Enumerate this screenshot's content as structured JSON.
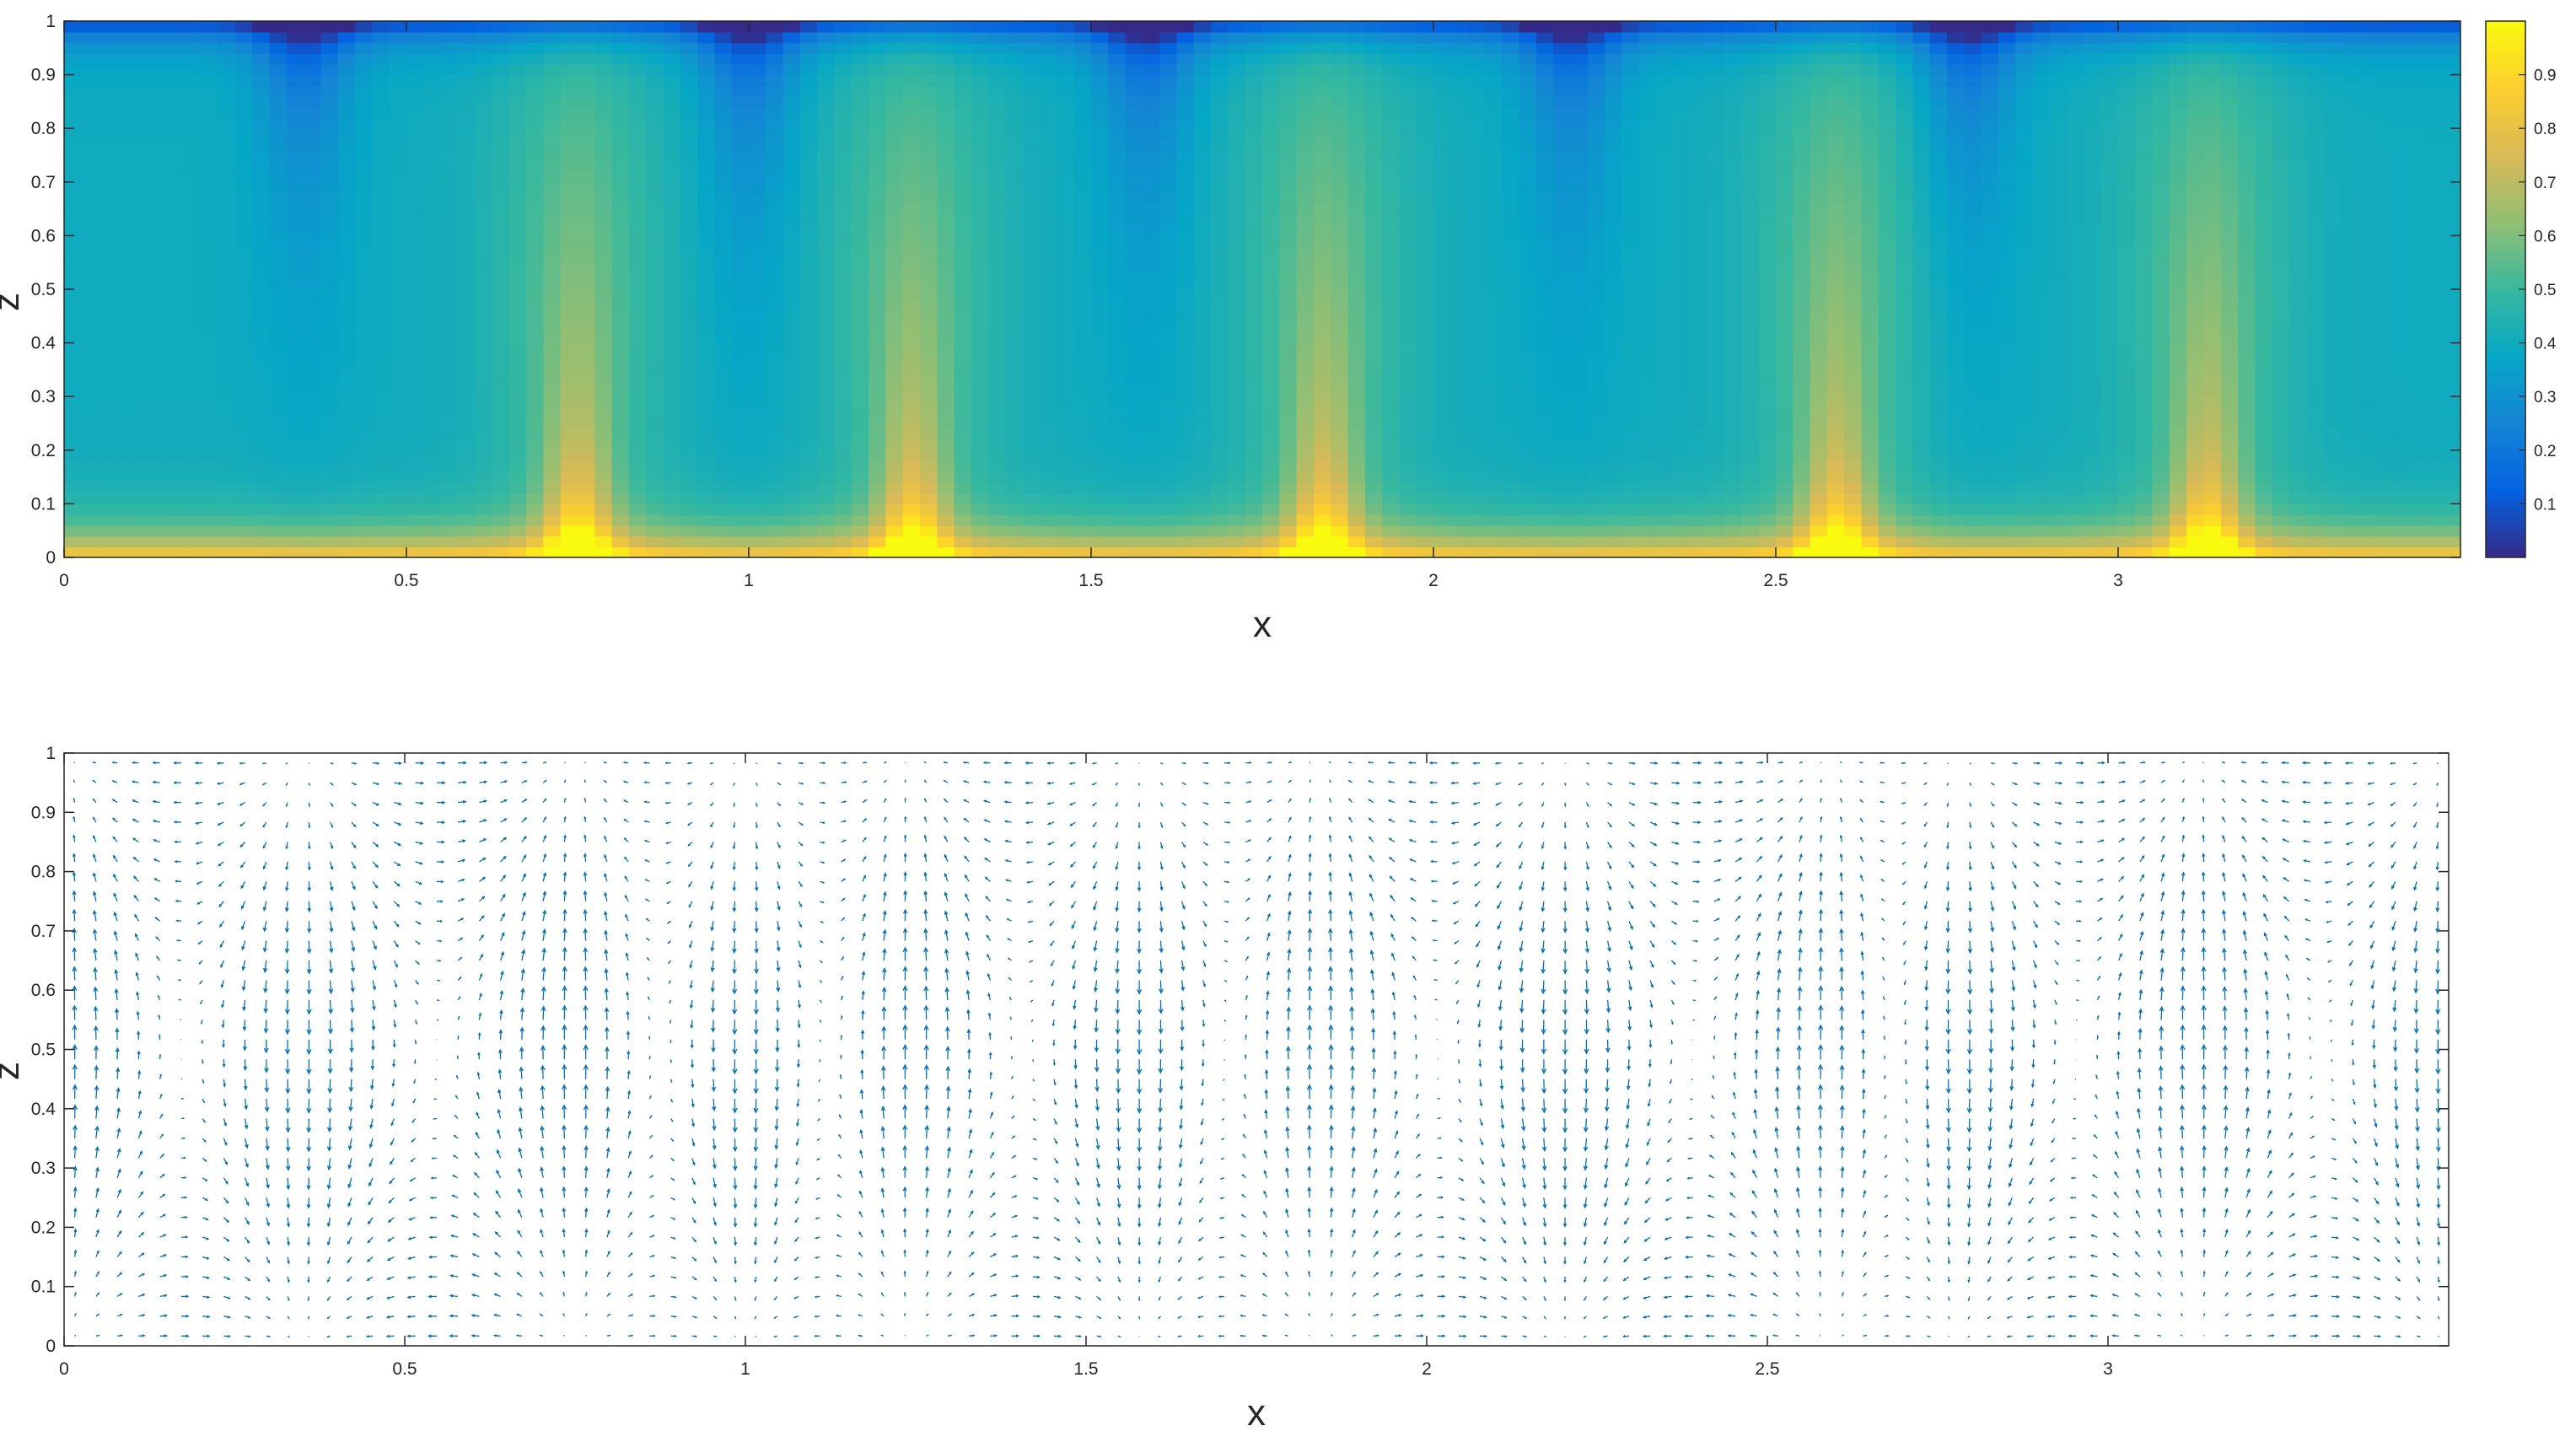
{
  "chart_data": [
    {
      "type": "heatmap",
      "title": "",
      "xlabel": "x",
      "ylabel": "z",
      "xlim": [
        0,
        3.5
      ],
      "ylim": [
        0,
        1
      ],
      "xticks": [
        0,
        0.5,
        1,
        1.5,
        2,
        2.5,
        3
      ],
      "xtick_labels": [
        "0",
        "0.5",
        "1",
        "1.5",
        "2",
        "2.5",
        "3"
      ],
      "yticks": [
        0,
        0.1,
        0.2,
        0.3,
        0.4,
        0.5,
        0.6,
        0.7,
        0.8,
        0.9,
        1
      ],
      "ytick_labels": [
        "0",
        "0.1",
        "0.2",
        "0.3",
        "0.4",
        "0.5",
        "0.6",
        "0.7",
        "0.8",
        "0.9",
        "1"
      ],
      "colorbar": {
        "range": [
          0,
          1
        ],
        "ticks": [
          0.1,
          0.2,
          0.3,
          0.4,
          0.5,
          0.6,
          0.7,
          0.8,
          0.9
        ],
        "tick_labels": [
          "0.1",
          "0.2",
          "0.3",
          "0.4",
          "0.5",
          "0.6",
          "0.7",
          "0.8",
          "0.9"
        ],
        "colormap": "parula"
      },
      "field": {
        "description_values": "temperature-like scalar, ~1 at z=0, ~0 at z=1",
        "hot_plume_x": [
          0.75,
          1.24,
          1.84,
          2.59,
          3.13
        ],
        "cold_plume_x": [
          0.35,
          1.0,
          1.58,
          2.2,
          2.78
        ],
        "interior_cool_value": 0.4,
        "bottom_value": 0.9,
        "top_value": 0.02
      },
      "grid": false,
      "legend": "none"
    },
    {
      "type": "quiver",
      "title": "",
      "xlabel": "x",
      "ylabel": "z",
      "xlim": [
        0,
        3.5
      ],
      "ylim": [
        0,
        1
      ],
      "xticks": [
        0,
        0.5,
        1,
        1.5,
        2,
        2.5,
        3
      ],
      "xtick_labels": [
        "0",
        "0.5",
        "1",
        "1.5",
        "2",
        "2.5",
        "3"
      ],
      "yticks": [
        0,
        0.1,
        0.2,
        0.3,
        0.4,
        0.5,
        0.6,
        0.7,
        0.8,
        0.9,
        1
      ],
      "ytick_labels": [
        "0",
        "0.1",
        "0.2",
        "0.3",
        "0.4",
        "0.5",
        "0.6",
        "0.7",
        "0.8",
        "0.9",
        "1"
      ],
      "arrow_color": "#0072BD",
      "convection_rolls": {
        "upflow_x": [
          0.75,
          1.24,
          1.84,
          2.59,
          3.13
        ],
        "downflow_x": [
          0.35,
          1.0,
          1.58,
          2.2,
          2.78
        ]
      },
      "grid": false,
      "legend": "none"
    }
  ]
}
